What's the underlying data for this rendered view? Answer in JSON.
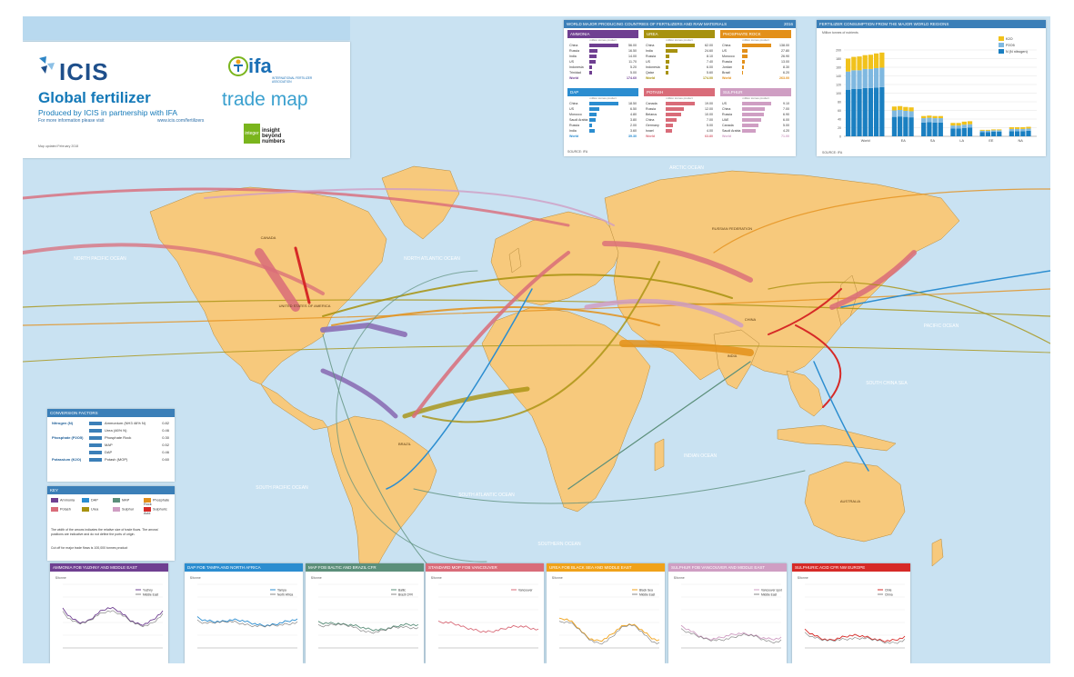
{
  "title_block": {
    "icis_logo": "ICIS",
    "title": "Global fertilizer",
    "subtitle": "Produced by ICIS in partnership with IFA",
    "more_info": "For more information please visit",
    "url": "www.icis.com/fertilizers",
    "pub_date": "Map updated February 2018",
    "ifa_logo": "ifa",
    "ifa_sub": "INTERNATIONAL FERTILIZER ASSOCIATION",
    "trade_map": "trade map",
    "integer_logo": "integer",
    "integer_tagline": "insight beyond numbers"
  },
  "production": {
    "header": "WORLD MAJOR PRODUCING COUNTRIES OF FERTILIZERS AND RAW MATERIALS",
    "year": "2016",
    "unit": "million tonnes product",
    "source": "SOURCE: IFA",
    "tables": [
      {
        "name": "AMMONIA",
        "color": "#6f3f91",
        "rows": [
          [
            "China",
            "56.00"
          ],
          [
            "Russia",
            "16.50"
          ],
          [
            "India",
            "14.00"
          ],
          [
            "US",
            "11.70"
          ],
          [
            "Indonesia",
            "5.20"
          ],
          [
            "Trinidad",
            "5.00"
          ]
        ],
        "world": "174.60"
      },
      {
        "name": "UREA",
        "color": "#a7920f",
        "rows": [
          [
            "China",
            "62.00"
          ],
          [
            "India",
            "24.60"
          ],
          [
            "Russia",
            "8.10"
          ],
          [
            "US",
            "7.40"
          ],
          [
            "Indonesia",
            "6.00"
          ],
          [
            "Qatar",
            "5.60"
          ]
        ],
        "world": "174.00"
      },
      {
        "name": "PHOSPHATE ROCK",
        "color": "#e3901a",
        "rows": [
          [
            "China",
            "138.00"
          ],
          [
            "US",
            "27.80"
          ],
          [
            "Morocco",
            "26.90"
          ],
          [
            "Russia",
            "13.00"
          ],
          [
            "Jordan",
            "8.30"
          ],
          [
            "Brazil",
            "6.20"
          ]
        ],
        "world": "263.00"
      },
      {
        "name": "DAP",
        "color": "#2b8dd0",
        "rows": [
          [
            "China",
            "18.50"
          ],
          [
            "US",
            "6.50"
          ],
          [
            "Morocco",
            "4.80"
          ],
          [
            "Saudi Arabia",
            "3.80"
          ],
          [
            "Russia",
            "2.00"
          ],
          [
            "India",
            "3.60"
          ]
        ],
        "world": "39.30"
      },
      {
        "name": "POTASH",
        "color": "#d96c79",
        "rows": [
          [
            "Canada",
            "19.00"
          ],
          [
            "Russia",
            "12.00"
          ],
          [
            "Belarus",
            "10.00"
          ],
          [
            "China",
            "7.00"
          ],
          [
            "Germany",
            "5.00"
          ],
          [
            "Israel",
            "4.00"
          ]
        ],
        "world": "63.80"
      },
      {
        "name": "SULPHUR",
        "color": "#cf9ec3",
        "rows": [
          [
            "US",
            "9.10"
          ],
          [
            "China",
            "7.00"
          ],
          [
            "Russia",
            "6.90"
          ],
          [
            "UAE",
            "6.00"
          ],
          [
            "Canada",
            "5.00"
          ],
          [
            "Saudi Arabia",
            "4.20"
          ]
        ],
        "world": "71.00"
      }
    ]
  },
  "consumption": {
    "header": "FERTILIZER CONSUMPTION FROM THE MAJOR WORLD REGIONS",
    "unit": "Million tonnes of nutrients",
    "legend": [
      "K2O",
      "P2O5",
      "N (N nitrogen)"
    ],
    "source": "SOURCE: IFA",
    "chart_data": {
      "type": "bar",
      "stacked": true,
      "regions": [
        "World",
        "EA",
        "SA",
        "LA",
        "EE",
        "NA"
      ],
      "ylim": [
        0,
        200
      ],
      "yticks": [
        "0",
        "20",
        "40",
        "60",
        "80",
        "100",
        "120",
        "140",
        "160",
        "180",
        "200"
      ],
      "series": [
        {
          "name": "N",
          "color": "#1a7fc1",
          "values": [
            108,
            110,
            110,
            112,
            112,
            113,
            114,
            45,
            46,
            45,
            44,
            32,
            33,
            32,
            32,
            18,
            18,
            19,
            20,
            10,
            10,
            11,
            11,
            12,
            12,
            12,
            13
          ]
        },
        {
          "name": "P2O5",
          "color": "#7fb8e0",
          "values": [
            42,
            43,
            43,
            44,
            44,
            45,
            45,
            15,
            15,
            14,
            14,
            10,
            10,
            10,
            10,
            7,
            7,
            8,
            8,
            3,
            3,
            3,
            3,
            5,
            5,
            5,
            5
          ]
        },
        {
          "name": "K2O",
          "color": "#f1c21b",
          "values": [
            30,
            31,
            32,
            32,
            33,
            34,
            35,
            9,
            9,
            9,
            9,
            5,
            5,
            5,
            5,
            6,
            6,
            7,
            7,
            2,
            2,
            2,
            2,
            4,
            4,
            4,
            4
          ]
        }
      ],
      "region_counts": [
        7,
        4,
        4,
        4,
        4,
        4
      ]
    }
  },
  "conversion": {
    "header": "CONVERSION FACTORS",
    "rows": [
      {
        "nutrient": "Nitrogen (N)",
        "product": "Ammonium (NH3 46% N)",
        "value": "0.82"
      },
      {
        "nutrient": "",
        "product": "Urea (46% N)",
        "value": "0.46"
      },
      {
        "nutrient": "Phosphate (P2O5)",
        "product": "Phosphate Rock",
        "value": "0.30"
      },
      {
        "nutrient": "",
        "product": "MAP",
        "value": "0.52"
      },
      {
        "nutrient": "",
        "product": "DAP",
        "value": "0.46"
      },
      {
        "nutrient": "Potassium (K2O)",
        "product": "Potash (MOP)",
        "value": "0.60"
      }
    ]
  },
  "key": {
    "header": "KEY",
    "items": [
      {
        "label": "Ammonia",
        "color": "#6f3f91"
      },
      {
        "label": "DAP",
        "color": "#2b8dd0"
      },
      {
        "label": "MAP",
        "color": "#5b8f7a"
      },
      {
        "label": "Phosphate Rock",
        "color": "#e3901a"
      },
      {
        "label": "Potash",
        "color": "#d96c79"
      },
      {
        "label": "Urea",
        "color": "#a7920f"
      },
      {
        "label": "Sulphur",
        "color": "#cf9ec3"
      },
      {
        "label": "Sulphuric Acid",
        "color": "#d62a27"
      }
    ],
    "note": "The width of the arrows indicates the relative size of trade flows. The arrows' positions are indicative and do not define the ports of origin.",
    "cutoff": "Cut off for major trade flows is 100,000 tonnes product"
  },
  "price_panels": [
    {
      "title": "AMMONIA FOB YUZHNY AND MIDDLE EAST",
      "color": "#6f3f91",
      "unit": "$/tonne",
      "legend": [
        "Yuzhny",
        "Middle East"
      ]
    },
    {
      "title": "DAP FOB TAMPA AND NORTH AFRICA",
      "color": "#2b8dd0",
      "unit": "$/tonne",
      "legend": [
        "Tampa",
        "North Africa"
      ]
    },
    {
      "title": "MAP FOB BALTIC AND BRAZIL CFR",
      "color": "#5b8f7a",
      "unit": "$/tonne",
      "legend": [
        "Baltic",
        "Brazil CFR"
      ]
    },
    {
      "title": "STANDARD MOP FOB VANCOUVER",
      "color": "#d96c79",
      "unit": "$/tonne",
      "legend": [
        "Vancouver"
      ]
    },
    {
      "title": "UREA FOB BLACK SEA AND MIDDLE EAST",
      "color": "#f0a21a",
      "unit": "$/tonne",
      "legend": [
        "Black Sea",
        "Middle East"
      ]
    },
    {
      "title": "SULPHUR FOB VANCOUVER AND MIDDLE EAST",
      "color": "#cf9ec3",
      "unit": "$/tonne",
      "legend": [
        "Vancouver spot",
        "Middle East"
      ]
    },
    {
      "title": "SULPHURIC ACID CFR NW EUROPE",
      "color": "#d62a27",
      "unit": "$/tonne",
      "legend": [
        "Chile",
        "China"
      ]
    }
  ],
  "map_labels": {
    "canada": "CANADA",
    "us": "UNITED STATES OF AMERICA",
    "brazil": "BRAZIL",
    "russia": "RUSSIAN FEDERATION",
    "china": "CHINA",
    "australia": "AUSTRALIA",
    "india": "INDIA",
    "north_pacific": "NORTH PACIFIC OCEAN",
    "north_atlantic": "NORTH ATLANTIC OCEAN",
    "south_pacific": "SOUTH PACIFIC OCEAN",
    "south_atlantic": "SOUTH ATLANTIC OCEAN",
    "indian_ocean": "INDIAN OCEAN",
    "pacific": "PACIFIC OCEAN",
    "southern": "SOUTHERN OCEAN",
    "arctic": "ARCTIC OCEAN",
    "south_china_sea": "SOUTH CHINA SEA"
  }
}
